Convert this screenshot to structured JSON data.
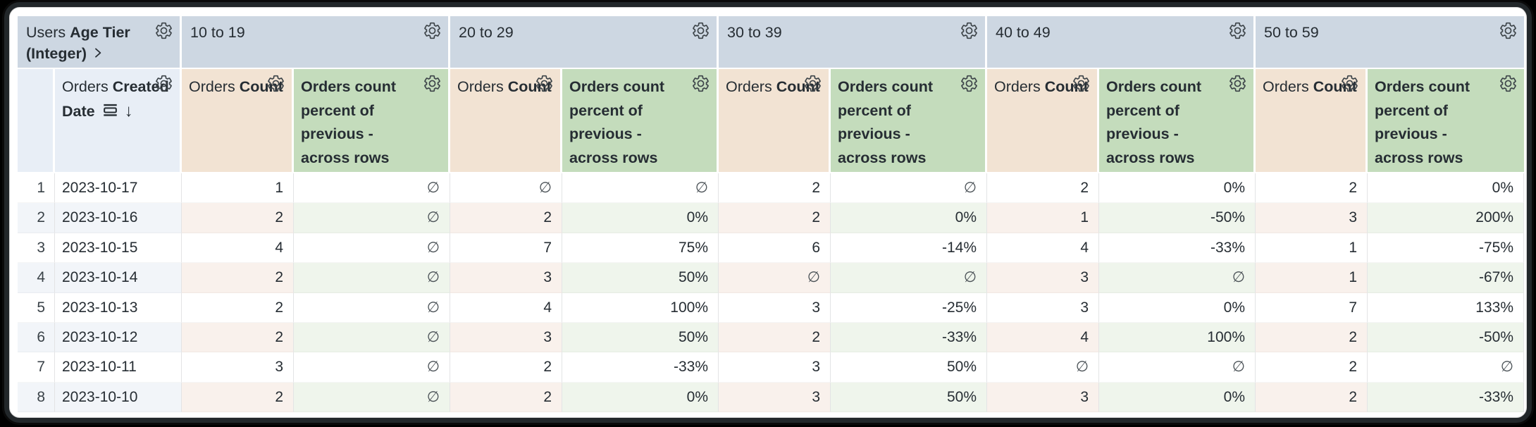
{
  "glyphs": {
    "sort_arrow": "↓",
    "null_value": "∅",
    "chevron": "❯"
  },
  "colors": {
    "pivot_header_bg": "#cdd7e2",
    "dimension_header_bg": "#e8eef6",
    "measure_header_bg": "#f2e3d3",
    "calc_header_bg": "#c4dcbc",
    "row_even_dimension_bg": "#f2f5f9",
    "row_even_measure_bg": "#f9f1ec",
    "row_even_calc_bg": "#eff5ec",
    "text": "#262d33",
    "grid_line": "#e3e4e5",
    "gear_stroke": "#3d4449",
    "frame_bg": "#000000"
  },
  "table": {
    "corner_pivot": {
      "view_label": "Users",
      "field_label": "Age Tier (Integer)"
    },
    "row_header": {
      "view_label": "Orders",
      "field_label": "Created Date"
    },
    "pivot_values": [
      "10 to 19",
      "20 to 29",
      "30 to 39",
      "40 to 49",
      "50 to 59"
    ],
    "measure_headers": {
      "count": {
        "view_label": "Orders",
        "field_label": "Count"
      },
      "percent": {
        "label": "Orders count percent of previous - across rows"
      }
    },
    "rows": [
      {
        "n": "1",
        "date": "2023-10-17",
        "values": [
          "1",
          "∅",
          "∅",
          "∅",
          "2",
          "∅",
          "2",
          "0%",
          "2",
          "0%"
        ]
      },
      {
        "n": "2",
        "date": "2023-10-16",
        "values": [
          "2",
          "∅",
          "2",
          "0%",
          "2",
          "0%",
          "1",
          "-50%",
          "3",
          "200%"
        ]
      },
      {
        "n": "3",
        "date": "2023-10-15",
        "values": [
          "4",
          "∅",
          "7",
          "75%",
          "6",
          "-14%",
          "4",
          "-33%",
          "1",
          "-75%"
        ]
      },
      {
        "n": "4",
        "date": "2023-10-14",
        "values": [
          "2",
          "∅",
          "3",
          "50%",
          "∅",
          "∅",
          "3",
          "∅",
          "1",
          "-67%"
        ]
      },
      {
        "n": "5",
        "date": "2023-10-13",
        "values": [
          "2",
          "∅",
          "4",
          "100%",
          "3",
          "-25%",
          "3",
          "0%",
          "7",
          "133%"
        ]
      },
      {
        "n": "6",
        "date": "2023-10-12",
        "values": [
          "2",
          "∅",
          "3",
          "50%",
          "2",
          "-33%",
          "4",
          "100%",
          "2",
          "-50%"
        ]
      },
      {
        "n": "7",
        "date": "2023-10-11",
        "values": [
          "3",
          "∅",
          "2",
          "-33%",
          "3",
          "50%",
          "∅",
          "∅",
          "2",
          "∅"
        ]
      },
      {
        "n": "8",
        "date": "2023-10-10",
        "values": [
          "2",
          "∅",
          "2",
          "0%",
          "3",
          "50%",
          "3",
          "0%",
          "2",
          "-33%"
        ]
      }
    ]
  }
}
